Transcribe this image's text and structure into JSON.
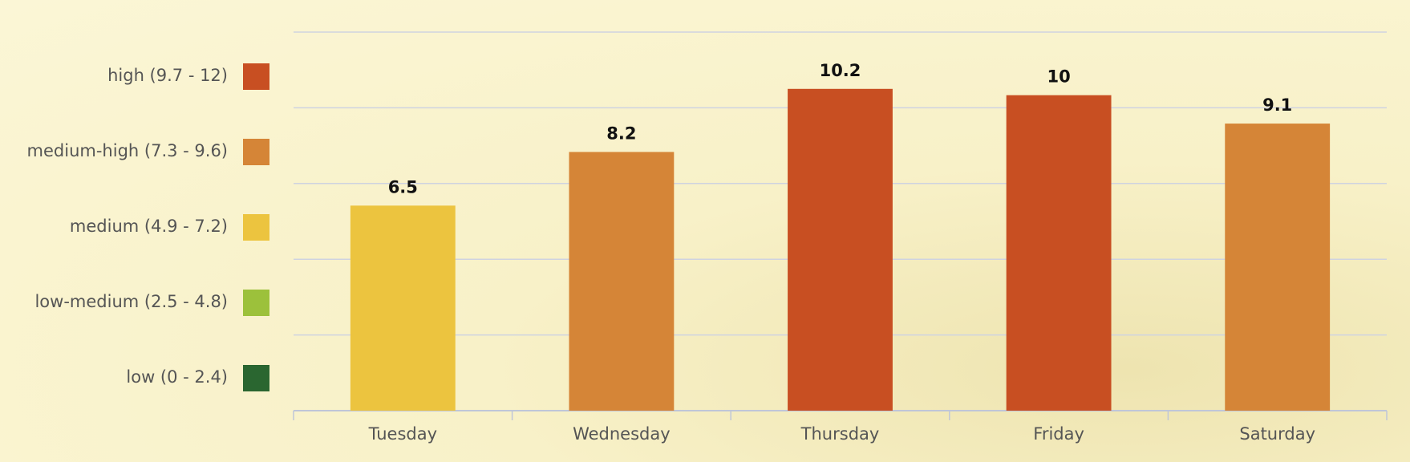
{
  "chart_data": {
    "type": "bar",
    "categories": [
      "Tuesday",
      "Wednesday",
      "Thursday",
      "Friday",
      "Saturday"
    ],
    "values": [
      6.5,
      8.2,
      10.2,
      10,
      9.1
    ],
    "colors": [
      "#ecc43f",
      "#d58537",
      "#c84f22",
      "#c84f22",
      "#d58537"
    ],
    "ylim": [
      0,
      12
    ],
    "yticks": [
      0,
      2.4,
      4.8,
      7.2,
      9.6,
      12
    ],
    "grid": true,
    "legend": [
      {
        "label": "high (9.7 - 12)",
        "color": "#c84f22"
      },
      {
        "label": "medium-high (7.3 - 9.6)",
        "color": "#d58537"
      },
      {
        "label": "medium (4.9 - 7.2)",
        "color": "#ecc43f"
      },
      {
        "label": "low-medium (2.5 - 4.8)",
        "color": "#9cc13b"
      },
      {
        "label": "low (0 - 2.4)",
        "color": "#2a6630"
      }
    ]
  }
}
